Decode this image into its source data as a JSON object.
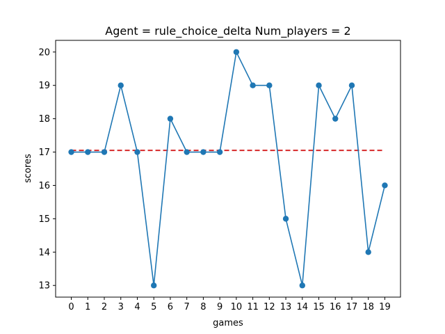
{
  "chart_data": {
    "type": "line",
    "title": "Agent = rule_choice_delta Num_players = 2",
    "xlabel": "games",
    "ylabel": "scores",
    "x": [
      0,
      1,
      2,
      3,
      4,
      5,
      6,
      7,
      8,
      9,
      10,
      11,
      12,
      13,
      14,
      15,
      16,
      17,
      18,
      19
    ],
    "series": [
      {
        "values": [
          17,
          17,
          17,
          19,
          17,
          13,
          18,
          17,
          17,
          17,
          20,
          19,
          19,
          15,
          13,
          19,
          18,
          19,
          14,
          16
        ],
        "color": "#1f77b4",
        "marker": "circle"
      }
    ],
    "mean_line": {
      "value": 17.05,
      "color": "#d62728",
      "style": "dashed"
    },
    "xlim": [
      -0.95,
      19.95
    ],
    "ylim": [
      12.65,
      20.35
    ],
    "xticks": [
      "0",
      "1",
      "2",
      "3",
      "4",
      "5",
      "6",
      "7",
      "8",
      "9",
      "10",
      "11",
      "12",
      "13",
      "14",
      "15",
      "16",
      "17",
      "18",
      "19"
    ],
    "yticks": [
      "13",
      "14",
      "15",
      "16",
      "17",
      "18",
      "19",
      "20"
    ],
    "grid": false,
    "legend": "none"
  }
}
